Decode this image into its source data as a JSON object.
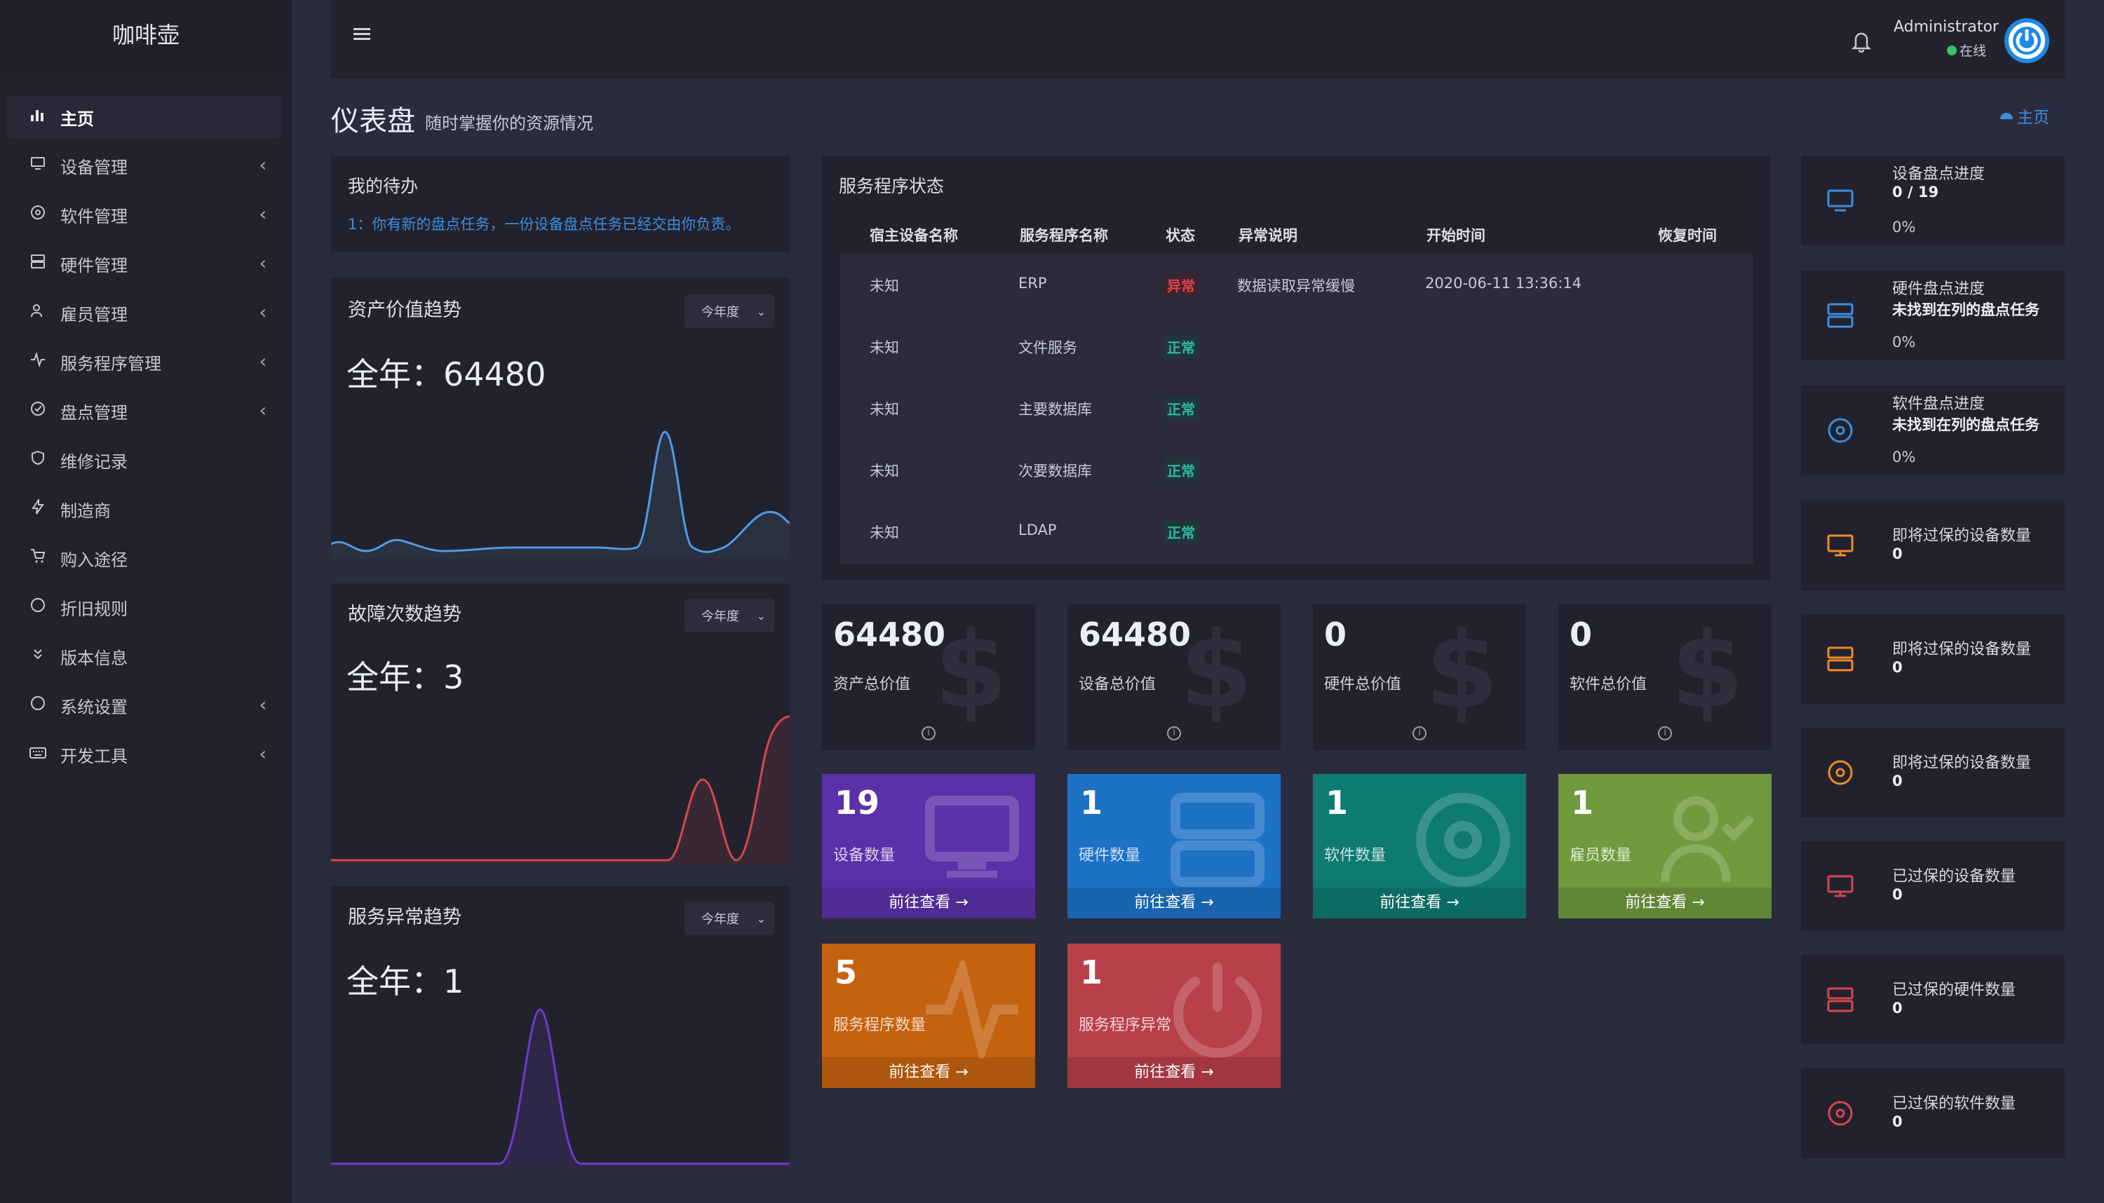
{
  "app": {
    "brand": "咖啡壶"
  },
  "sidebar": {
    "items": [
      {
        "label": "主页",
        "icon": "bar-chart-icon",
        "active": true
      },
      {
        "label": "设备管理",
        "icon": "monitor-icon",
        "caret": true
      },
      {
        "label": "软件管理",
        "icon": "disc-icon",
        "caret": true
      },
      {
        "label": "硬件管理",
        "icon": "server-icon",
        "caret": true
      },
      {
        "label": "雇员管理",
        "icon": "user-icon",
        "caret": true
      },
      {
        "label": "服务程序管理",
        "icon": "activity-icon",
        "caret": true
      },
      {
        "label": "盘点管理",
        "icon": "check-circle-icon",
        "caret": true
      },
      {
        "label": "维修记录",
        "icon": "shield-icon"
      },
      {
        "label": "制造商",
        "icon": "bolt-icon"
      },
      {
        "label": "购入途径",
        "icon": "cart-icon"
      },
      {
        "label": "折旧规则",
        "icon": "circle-icon"
      },
      {
        "label": "版本信息",
        "icon": "chevrons-down-icon"
      },
      {
        "label": "系统设置",
        "icon": "circle-icon",
        "caret": true
      },
      {
        "label": "开发工具",
        "icon": "keyboard-icon",
        "caret": true
      }
    ]
  },
  "header": {
    "user_name": "Administrator",
    "status": "在线",
    "status_color": "#35c26a",
    "avatar_color": "#1e88e5"
  },
  "page": {
    "title": "仪表盘",
    "subtitle": "随时掌握你的资源情况",
    "breadcrumb": "主页"
  },
  "todo": {
    "title": "我的待办",
    "item": "1：你有新的盘点任务，一份设备盘点任务已经交由你负责。"
  },
  "trends": [
    {
      "title": "资产价值趋势",
      "filter": "今年度",
      "summary": "全年：64480",
      "color": "#4f9be8"
    },
    {
      "title": "故障次数趋势",
      "filter": "今年度",
      "summary": "全年：3",
      "color": "#d3484b"
    },
    {
      "title": "服务异常趋势",
      "filter": "今年度",
      "summary": "全年：1",
      "color": "#6e3bc9"
    }
  ],
  "service_status": {
    "title": "服务程序状态",
    "columns": [
      "宿主设备名称",
      "服务程序名称",
      "状态",
      "异常说明",
      "开始时间",
      "恢复时间"
    ],
    "rows": [
      {
        "host": "未知",
        "name": "ERP",
        "status": "异常",
        "status_type": "err",
        "note": "数据读取异常缓慢",
        "start": "2020-06-11 13:36:14",
        "recover": ""
      },
      {
        "host": "未知",
        "name": "文件服务",
        "status": "正常",
        "status_type": "ok",
        "note": "",
        "start": "",
        "recover": ""
      },
      {
        "host": "未知",
        "name": "主要数据库",
        "status": "正常",
        "status_type": "ok",
        "note": "",
        "start": "",
        "recover": ""
      },
      {
        "host": "未知",
        "name": "次要数据库",
        "status": "正常",
        "status_type": "ok",
        "note": "",
        "start": "",
        "recover": ""
      },
      {
        "host": "未知",
        "name": "LDAP",
        "status": "正常",
        "status_type": "ok",
        "note": "",
        "start": "",
        "recover": ""
      }
    ]
  },
  "value_tiles": [
    {
      "value": "64480",
      "label": "资产总价值"
    },
    {
      "value": "64480",
      "label": "设备总价值"
    },
    {
      "value": "0",
      "label": "硬件总价值"
    },
    {
      "value": "0",
      "label": "软件总价值"
    }
  ],
  "count_tiles": [
    {
      "value": "19",
      "label": "设备数量",
      "link": "前往查看 →",
      "color": "#5a31a8",
      "icon": "monitor-icon"
    },
    {
      "value": "1",
      "label": "硬件数量",
      "link": "前往查看 →",
      "color": "#1d72c6",
      "icon": "server-icon"
    },
    {
      "value": "1",
      "label": "软件数量",
      "link": "前往查看 →",
      "color": "#0e7b72",
      "icon": "disc-icon"
    },
    {
      "value": "1",
      "label": "雇员数量",
      "link": "前往查看 →",
      "color": "#6f9a3e",
      "icon": "user-check-icon"
    },
    {
      "value": "5",
      "label": "服务程序数量",
      "link": "前往查看 →",
      "color": "#c5620f",
      "icon": "activity-icon"
    },
    {
      "value": "1",
      "label": "服务程序异常",
      "link": "前往查看 →",
      "color": "#b8404a",
      "icon": "power-icon"
    }
  ],
  "right_cards": [
    {
      "title": "设备盘点进度",
      "sub": "0 / 19",
      "pct": "0%",
      "icon": "monitor-icon",
      "color": "#3c8ede"
    },
    {
      "title": "硬件盘点进度",
      "sub": "未找到在列的盘点任务",
      "pct": "0%",
      "icon": "server-icon",
      "color": "#3c8ede"
    },
    {
      "title": "软件盘点进度",
      "sub": "未找到在列的盘点任务",
      "pct": "0%",
      "icon": "disc-icon",
      "color": "#3c8ede"
    },
    {
      "title": "即将过保的设备数量",
      "sub": "0",
      "pct": "",
      "icon": "monitor-icon",
      "color": "#f08a24"
    },
    {
      "title": "即将过保的设备数量",
      "sub": "0",
      "pct": "",
      "icon": "server-icon",
      "color": "#f08a24"
    },
    {
      "title": "即将过保的设备数量",
      "sub": "0",
      "pct": "",
      "icon": "disc-icon",
      "color": "#f08a24"
    },
    {
      "title": "已过保的设备数量",
      "sub": "0",
      "pct": "",
      "icon": "monitor-icon",
      "color": "#d8474e"
    },
    {
      "title": "已过保的硬件数量",
      "sub": "0",
      "pct": "",
      "icon": "server-icon",
      "color": "#d8474e"
    },
    {
      "title": "已过保的软件数量",
      "sub": "0",
      "pct": "",
      "icon": "disc-icon",
      "color": "#d8474e"
    }
  ]
}
